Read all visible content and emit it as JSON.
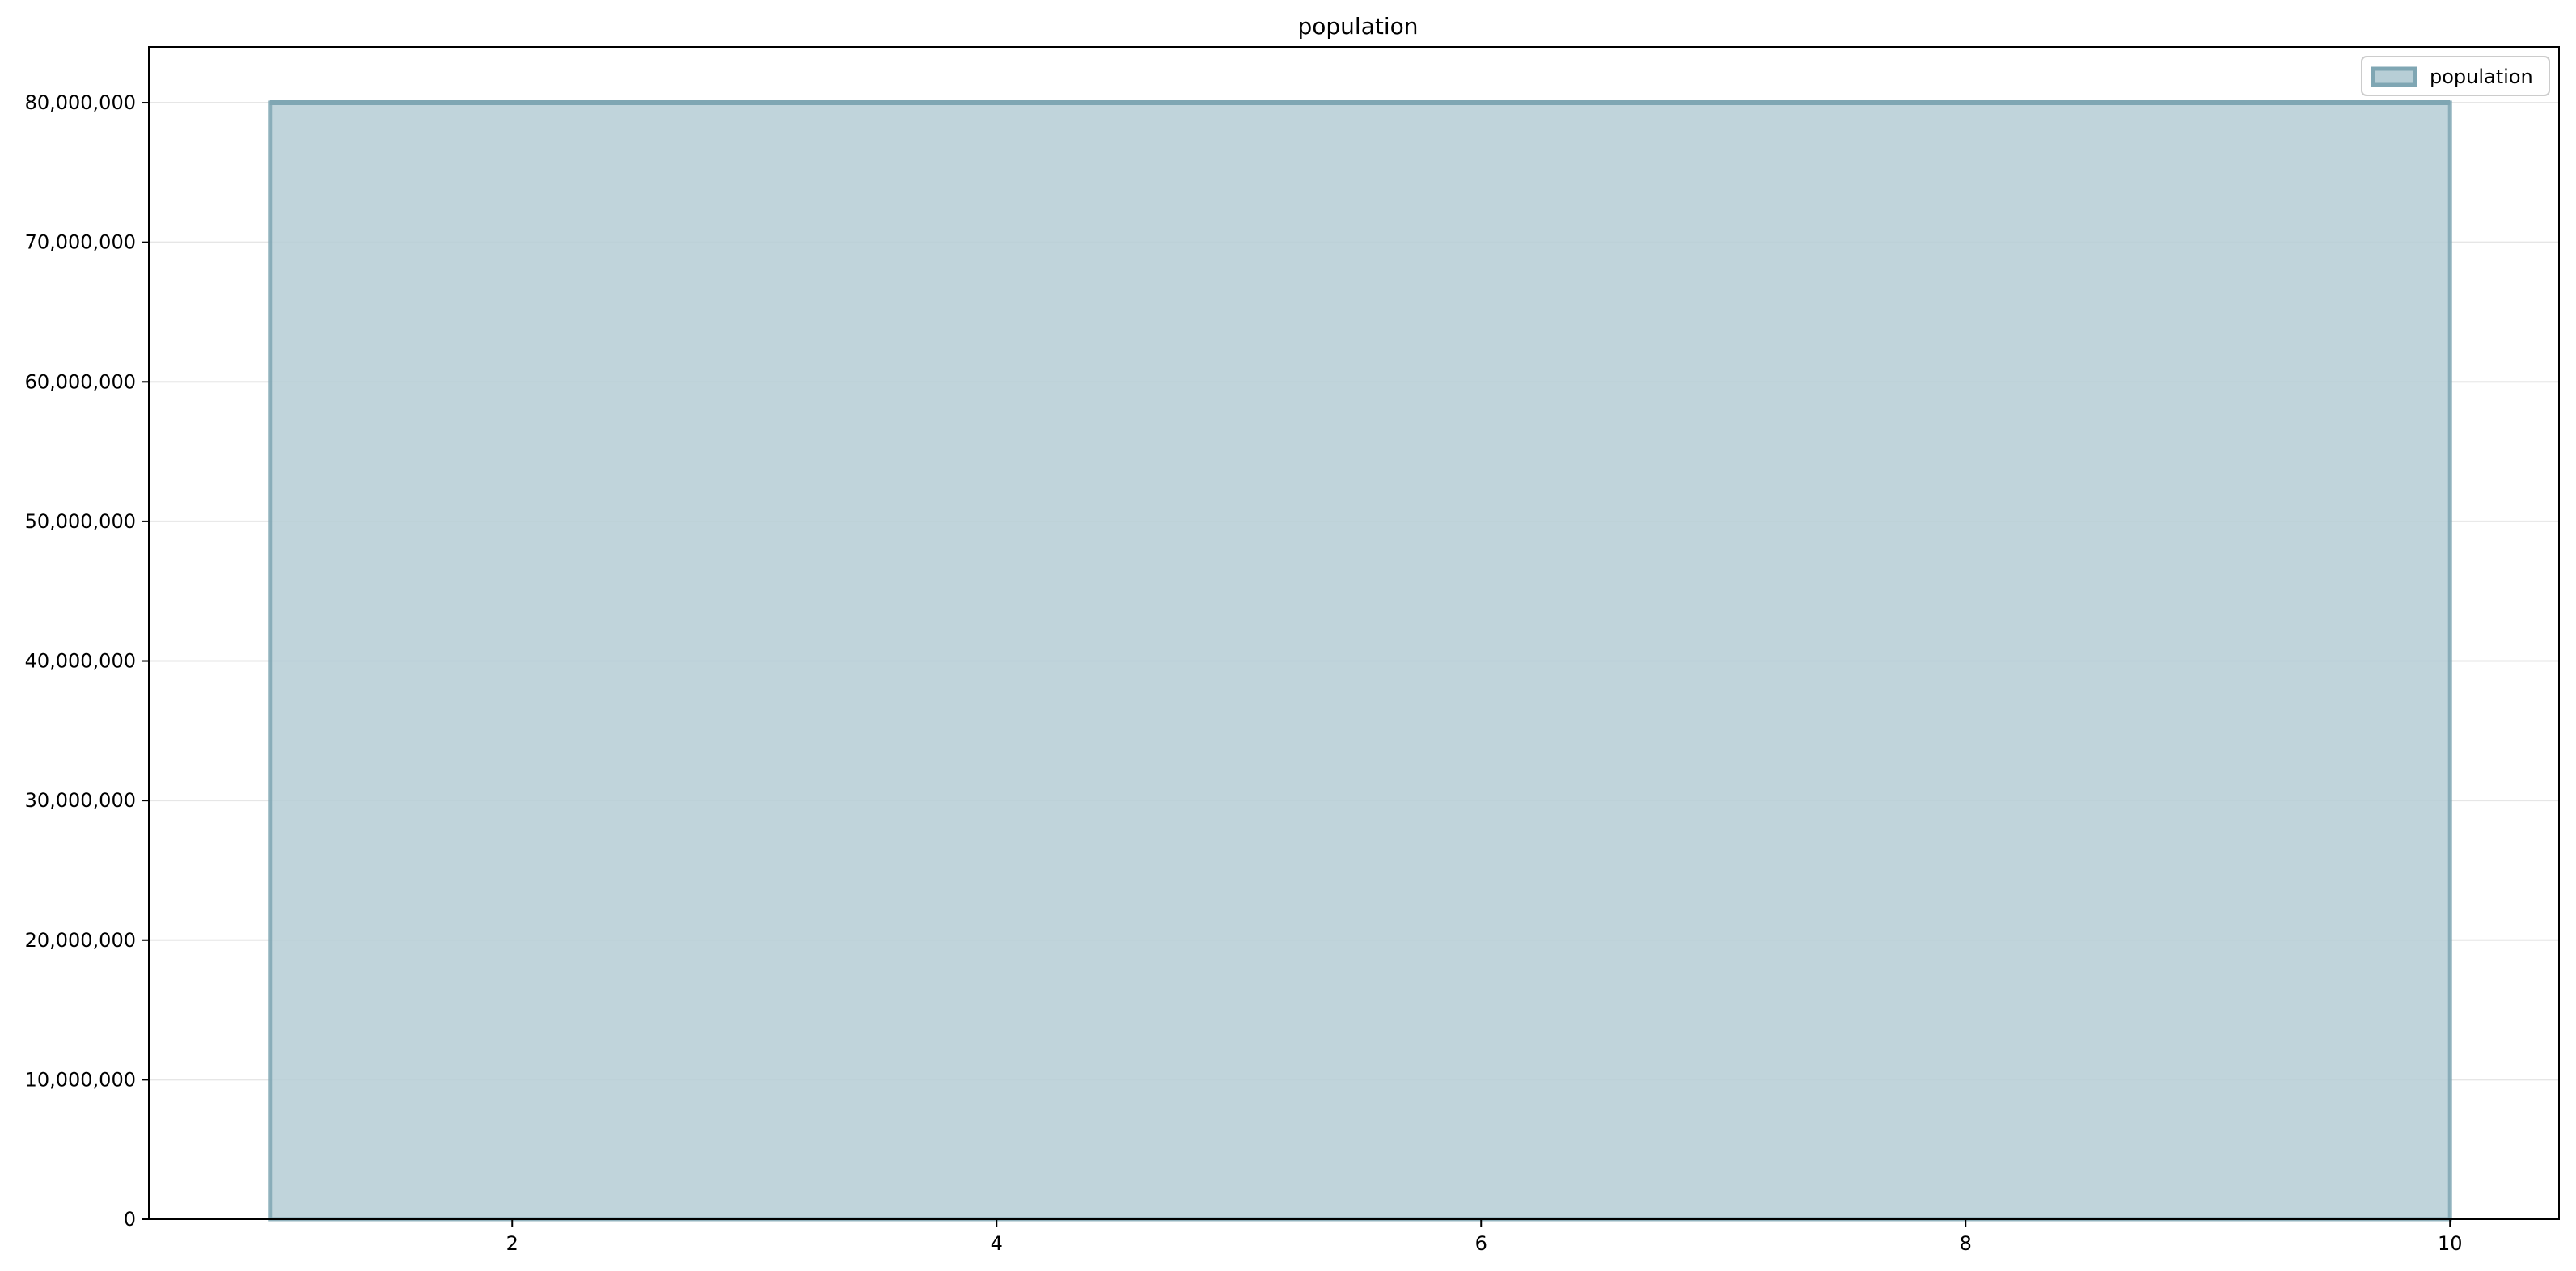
{
  "chart_data": {
    "type": "area",
    "title": "population",
    "xlabel": "",
    "ylabel": "",
    "xlim": [
      0.5,
      10.45
    ],
    "ylim": [
      0,
      84000000
    ],
    "x": [
      1,
      2,
      3,
      4,
      5,
      6,
      7,
      8,
      9,
      10
    ],
    "series": [
      {
        "name": "population",
        "values": [
          80000000,
          80000000,
          80000000,
          80000000,
          80000000,
          80000000,
          80000000,
          80000000,
          80000000,
          80000000
        ],
        "fill_color": "#b7ced6",
        "line_color": "#7fa6b3"
      }
    ],
    "x_ticks": [
      2,
      4,
      6,
      8,
      10
    ],
    "x_tick_labels": [
      "2",
      "4",
      "6",
      "8",
      "10"
    ],
    "y_ticks": [
      0,
      10000000,
      20000000,
      30000000,
      40000000,
      50000000,
      60000000,
      70000000,
      80000000
    ],
    "y_tick_labels": [
      "0",
      "10,000,000",
      "20,000,000",
      "30,000,000",
      "40,000,000",
      "50,000,000",
      "60,000,000",
      "70,000,000",
      "80,000,000"
    ],
    "grid": "horizontal",
    "legend": {
      "position": "top-right",
      "label": "population"
    }
  }
}
